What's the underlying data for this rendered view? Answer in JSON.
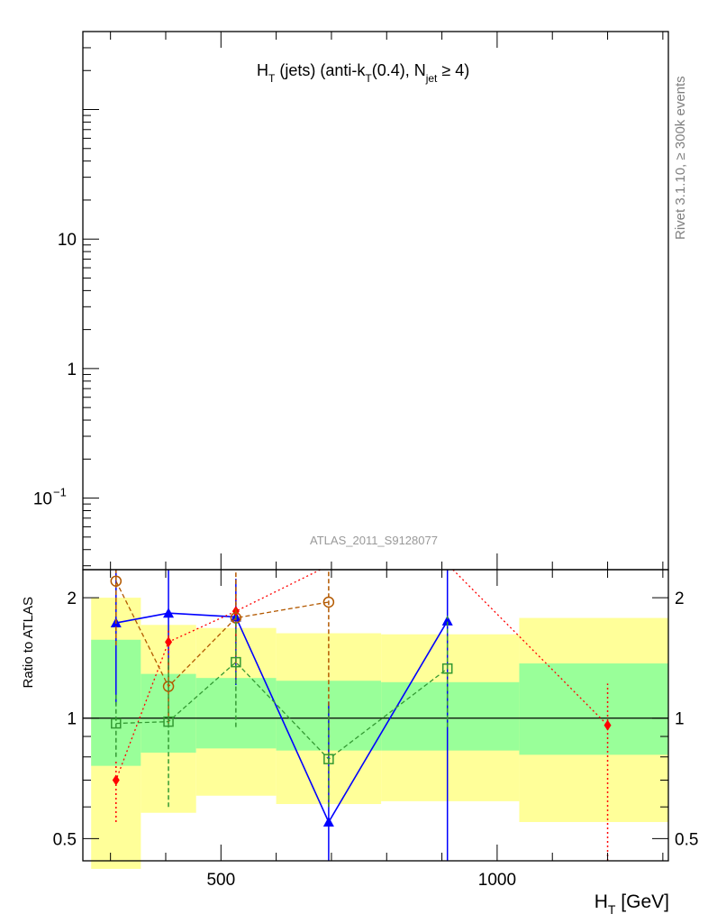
{
  "chart_data": {
    "type": "line",
    "title": "H_T (jets) (anti-k_T(0.4), N_jet ≥ 4)",
    "title_parts": {
      "main1": "H",
      "sub1": "T",
      "main2": " (jets) (anti-k",
      "sub2": "T",
      "main3": "(0.4), N",
      "sub3": "jet",
      "main4": " ≥ 4)"
    },
    "side_label": "Rivet 3.1.10, ≥ 300k events",
    "watermark": "ATLAS_2011_S9128077",
    "xlabel": {
      "main": "H",
      "sub": "T",
      "rest": " [GeV]"
    },
    "xlim": [
      250,
      1310
    ],
    "x_ticks": [
      {
        "value": 500,
        "label": "500"
      },
      {
        "value": 1000,
        "label": "1000"
      }
    ],
    "upper": {
      "yscale": "log",
      "ylim": [
        0.028,
        400
      ],
      "y_tick_labels": [
        {
          "value": 10,
          "label": "10"
        },
        {
          "value": 1,
          "label": "1"
        },
        {
          "value": 0.1,
          "label": "10",
          "sup": "−1"
        }
      ]
    },
    "lower": {
      "ylabel": "Ratio to ATLAS",
      "yscale": "log",
      "ylim": [
        0.44,
        2.35
      ],
      "y_tick_labels": [
        {
          "value": 0.5,
          "label": "0.5"
        },
        {
          "value": 1,
          "label": "1"
        },
        {
          "value": 2,
          "label": "2"
        }
      ],
      "reference_line": 1.0,
      "bands": [
        {
          "x0": 265,
          "x1": 355,
          "outer": [
            0.42,
            2.0
          ],
          "inner": [
            0.76,
            1.57
          ]
        },
        {
          "x0": 355,
          "x1": 455,
          "outer": [
            0.58,
            1.71
          ],
          "inner": [
            0.82,
            1.29
          ]
        },
        {
          "x0": 455,
          "x1": 600,
          "outer": [
            0.64,
            1.68
          ],
          "inner": [
            0.84,
            1.26
          ]
        },
        {
          "x0": 600,
          "x1": 790,
          "outer": [
            0.61,
            1.63
          ],
          "inner": [
            0.83,
            1.24
          ]
        },
        {
          "x0": 790,
          "x1": 1040,
          "outer": [
            0.62,
            1.62
          ],
          "inner": [
            0.83,
            1.23
          ]
        },
        {
          "x0": 1040,
          "x1": 1310,
          "outer": [
            0.55,
            1.78
          ],
          "inner": [
            0.81,
            1.37
          ]
        }
      ],
      "band_colors": {
        "outer": "#ffff99",
        "inner": "#99ff99"
      },
      "series": [
        {
          "color": "#0000ff",
          "line": "solid",
          "marker": "triangle-filled",
          "points": [
            {
              "x": 310,
              "y": 1.73,
              "lo": 1.08,
              "hi": 2.35
            },
            {
              "x": 405,
              "y": 1.83,
              "lo": 1.32,
              "hi": 2.35
            },
            {
              "x": 527,
              "y": 1.79,
              "lo": 1.21,
              "hi": 2.23
            },
            {
              "x": 695,
              "y": 0.55,
              "lo": 0.44,
              "hi": 1.1
            },
            {
              "x": 910,
              "y": 1.75,
              "lo": 0.44,
              "hi": 2.35
            }
          ]
        },
        {
          "color": "#ff0000",
          "line": "dotted",
          "marker": "diamond-filled",
          "points": [
            {
              "x": 310,
              "y": 0.7,
              "lo": 0.55,
              "hi": 0.79
            },
            {
              "x": 405,
              "y": 1.55,
              "lo": 1.33,
              "hi": 1.66
            },
            {
              "x": 527,
              "y": 1.85,
              "lo": 1.52,
              "hi": 2.06
            },
            {
              "x": 1200,
              "y": 0.96,
              "lo": 0.44,
              "hi": 1.22
            }
          ],
          "line_points": [
            {
              "x": 310,
              "y": 0.55
            },
            {
              "x": 310,
              "y": 0.7
            },
            {
              "x": 405,
              "y": 1.55
            },
            {
              "x": 527,
              "y": 1.85
            },
            {
              "x": 680,
              "y": 2.35
            }
          ],
          "line_points_b": [
            {
              "x": 920,
              "y": 2.35
            },
            {
              "x": 1200,
              "y": 0.96
            }
          ]
        },
        {
          "color": "#b35900",
          "line": "dashed",
          "marker": "circle-open",
          "points": [
            {
              "x": 310,
              "y": 2.2,
              "lo": 1.52,
              "hi": 2.35
            },
            {
              "x": 405,
              "y": 1.2,
              "lo": 0.97,
              "hi": 1.4
            },
            {
              "x": 527,
              "y": 1.78,
              "lo": 1.26,
              "hi": 2.35
            },
            {
              "x": 695,
              "y": 1.95,
              "lo": 0.6,
              "hi": 2.35
            }
          ]
        },
        {
          "color": "#339933",
          "line": "dashed",
          "marker": "square-open",
          "points": [
            {
              "x": 310,
              "y": 0.97,
              "lo": 0.8,
              "hi": 1.15
            },
            {
              "x": 405,
              "y": 0.98,
              "lo": 0.6,
              "hi": 1.44
            },
            {
              "x": 527,
              "y": 1.38,
              "lo": 0.95,
              "hi": 1.8
            },
            {
              "x": 695,
              "y": 0.79,
              "lo": 0.6,
              "hi": 1.06
            },
            {
              "x": 910,
              "y": 1.33,
              "lo": 0.95,
              "hi": 1.8
            }
          ]
        }
      ]
    }
  }
}
